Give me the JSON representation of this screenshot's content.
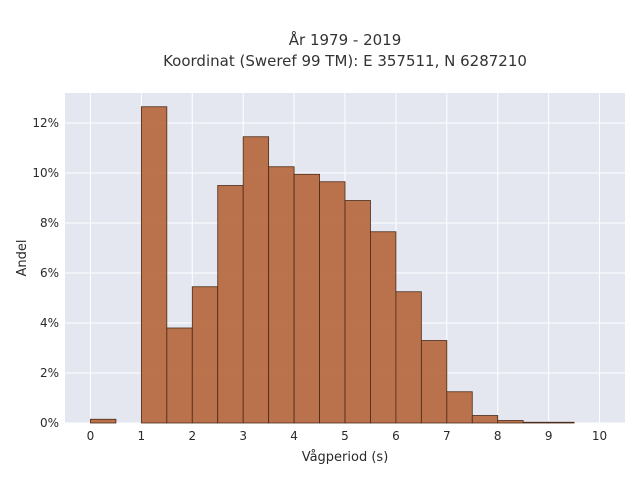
{
  "chart_data": {
    "type": "bar",
    "title": "År 1979 - 2019",
    "subtitle": "Koordinat (Sweref 99 TM): E 357511, N 6287210",
    "xlabel": "Vågperiod (s)",
    "ylabel": "Andel",
    "xlim": [
      -0.5,
      10.5
    ],
    "ylim": [
      0,
      13.2
    ],
    "x_ticks": [
      0,
      1,
      2,
      3,
      4,
      5,
      6,
      7,
      8,
      9,
      10
    ],
    "x_tick_labels": [
      "0",
      "1",
      "2",
      "3",
      "4",
      "5",
      "6",
      "7",
      "8",
      "9",
      "10"
    ],
    "y_ticks": [
      0,
      2,
      4,
      6,
      8,
      10,
      12
    ],
    "y_tick_labels": [
      "0%",
      "2%",
      "4%",
      "6%",
      "8%",
      "10%",
      "12%"
    ],
    "bin_width": 0.5,
    "bins": [
      {
        "x0": 0.0,
        "x1": 0.5,
        "value": 0.15
      },
      {
        "x0": 1.0,
        "x1": 1.5,
        "value": 12.65
      },
      {
        "x0": 1.5,
        "x1": 2.0,
        "value": 3.8
      },
      {
        "x0": 2.0,
        "x1": 2.5,
        "value": 5.45
      },
      {
        "x0": 2.5,
        "x1": 3.0,
        "value": 9.5
      },
      {
        "x0": 3.0,
        "x1": 3.5,
        "value": 11.45
      },
      {
        "x0": 3.5,
        "x1": 4.0,
        "value": 10.25
      },
      {
        "x0": 4.0,
        "x1": 4.5,
        "value": 9.95
      },
      {
        "x0": 4.5,
        "x1": 5.0,
        "value": 9.65
      },
      {
        "x0": 5.0,
        "x1": 5.5,
        "value": 8.9
      },
      {
        "x0": 5.5,
        "x1": 6.0,
        "value": 7.65
      },
      {
        "x0": 6.0,
        "x1": 6.5,
        "value": 5.25
      },
      {
        "x0": 6.5,
        "x1": 7.0,
        "value": 3.3
      },
      {
        "x0": 7.0,
        "x1": 7.5,
        "value": 1.25
      },
      {
        "x0": 7.5,
        "x1": 8.0,
        "value": 0.3
      },
      {
        "x0": 8.0,
        "x1": 8.5,
        "value": 0.1
      },
      {
        "x0": 8.5,
        "x1": 9.0,
        "value": 0.03
      },
      {
        "x0": 9.0,
        "x1": 9.5,
        "value": 0.03
      }
    ],
    "grid": true,
    "legend": "none",
    "colors": {
      "bar_fill": "#b5653a",
      "bar_stroke": "#4a2a18",
      "plot_background": "#e5e7f0",
      "grid": "#ffffff"
    }
  }
}
